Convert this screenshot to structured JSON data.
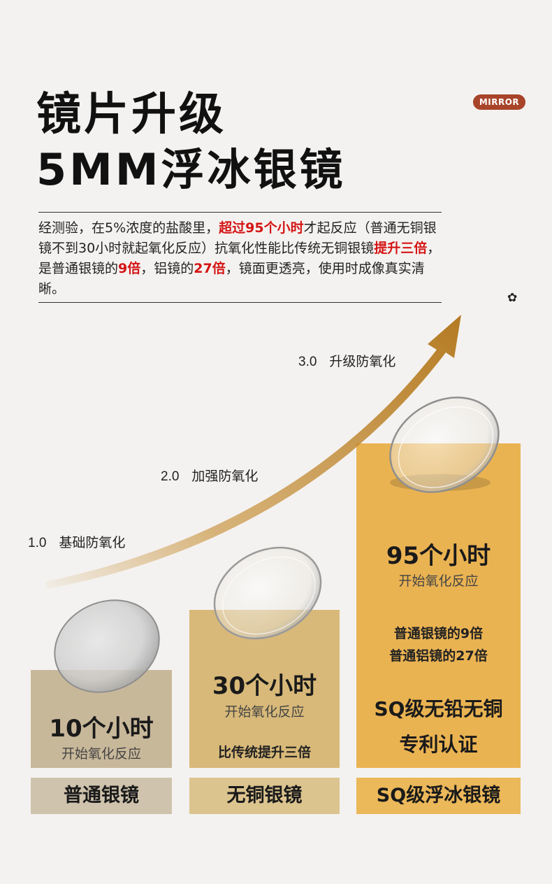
{
  "badge": "MIRROR",
  "title_line1": "镜片升级",
  "title_line2": "5MM浮冰银镜",
  "description": {
    "p1": "经测验，在5%浓度的盐酸里，",
    "hl1": "超过95个小时",
    "p2": "才起反应（普通无铜银镜不到30小时就起氧化反应）抗氧化性能比传统无铜银镜",
    "hl2": "提升三倍",
    "p3": "，是普通银镜的",
    "hl3": "9倍",
    "p4": "，铝镜的",
    "hl4": "27倍",
    "p5": "，镜面更透亮，使用时成像真实清晰。"
  },
  "levels": [
    {
      "num": "1.0",
      "label": "基础防氧化"
    },
    {
      "num": "2.0",
      "label": "加强防氧化"
    },
    {
      "num": "3.0",
      "label": "升级防氧化"
    }
  ],
  "columns": [
    {
      "hours": "10个小时",
      "hours_sub": "开始氧化反应",
      "name": "普通银镜",
      "color": "#c8b89a",
      "label_color": "#cfc3ad"
    },
    {
      "hours": "30个小时",
      "hours_sub": "开始氧化反应",
      "note": "比传统提升三倍",
      "name": "无铜银镜",
      "color": "#d8b979",
      "label_color": "#dcc48f"
    },
    {
      "hours": "95个小时",
      "hours_sub": "开始氧化反应",
      "note1": "普通银镜的9倍",
      "note2": "普通铝镜的27倍",
      "cert1": "SQ级无铅无铜",
      "cert2": "专利认证",
      "name": "SQ级浮冰银镜",
      "color": "#eab352",
      "label_color": "#ebb85a"
    }
  ],
  "colors": {
    "arrow": "#c48a2c",
    "highlight": "#d41414",
    "badge": "#a8442a"
  },
  "icons": [
    "flower-icon",
    "growth-arrow-icon"
  ]
}
